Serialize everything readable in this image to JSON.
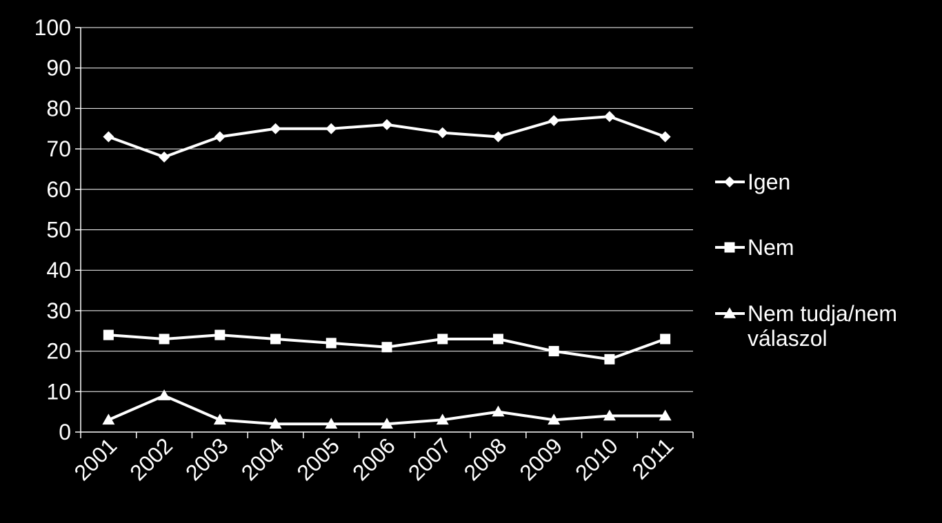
{
  "chart_data": {
    "type": "line",
    "title": "",
    "xlabel": "",
    "ylabel": "",
    "ylim": [
      0,
      100
    ],
    "ytick_step": 10,
    "grid": "horizontal",
    "legend_position": "right",
    "background": "#000000",
    "foreground": "#ffffff",
    "categories": [
      "2001",
      "2002",
      "2003",
      "2004",
      "2005",
      "2006",
      "2007",
      "2008",
      "2009",
      "2010",
      "2011"
    ],
    "series": [
      {
        "name": "Igen",
        "marker": "diamond",
        "values": [
          73,
          68,
          73,
          75,
          75,
          76,
          74,
          73,
          77,
          78,
          73
        ]
      },
      {
        "name": "Nem",
        "marker": "square",
        "values": [
          24,
          23,
          24,
          23,
          22,
          21,
          23,
          23,
          20,
          18,
          23
        ]
      },
      {
        "name": "Nem tudja/nem válaszol",
        "marker": "triangle",
        "values": [
          3,
          9,
          3,
          2,
          2,
          2,
          3,
          5,
          3,
          4,
          4
        ]
      }
    ]
  }
}
